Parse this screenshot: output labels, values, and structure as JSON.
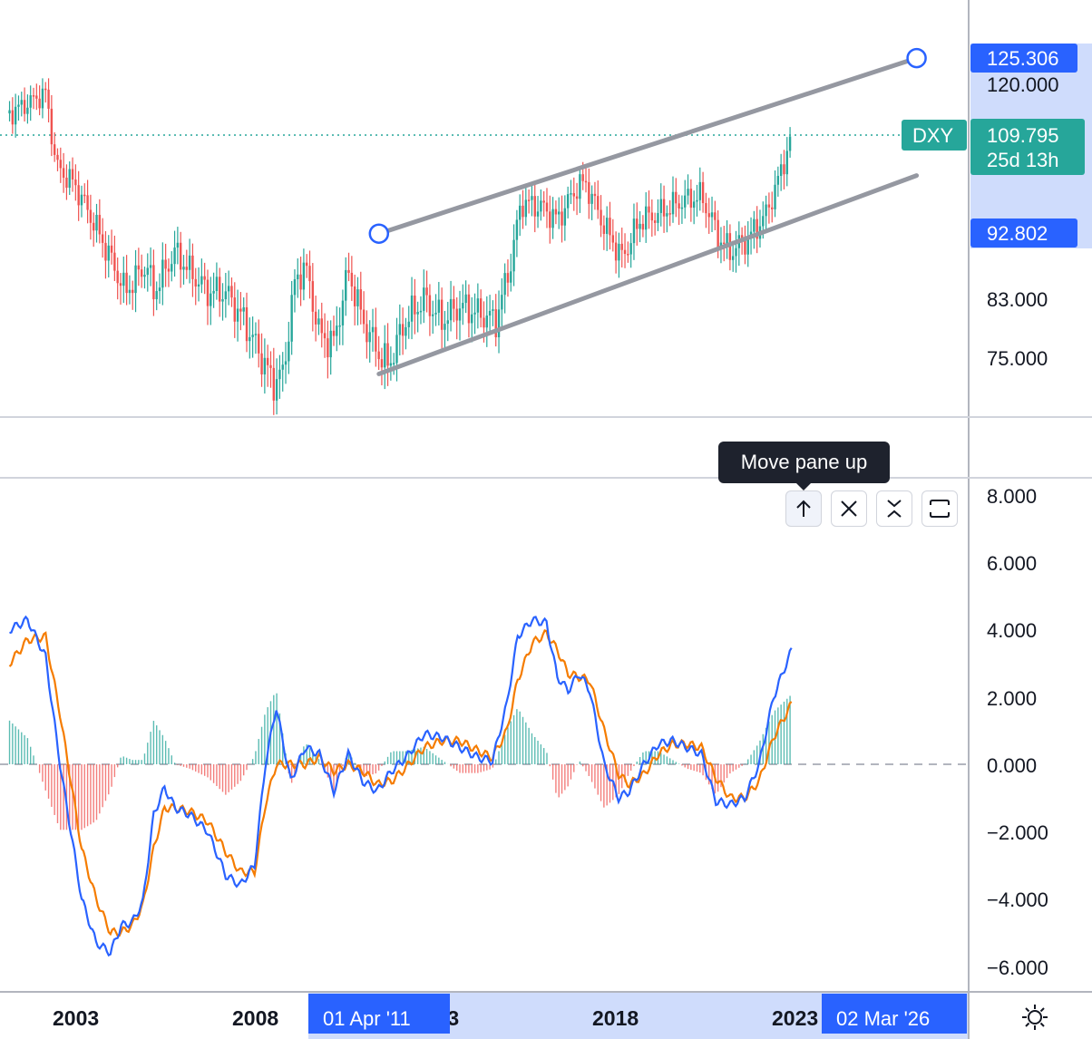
{
  "chart_data": [
    {
      "type": "candlestick",
      "symbol": "DXY",
      "x_ticks": [
        "2003",
        "2008",
        "2013",
        "2018",
        "2023"
      ],
      "y_ticks": [
        "120.000",
        "83.000",
        "75.000"
      ],
      "last_price": "109.795",
      "countdown": "25d 13h",
      "range_labels": [
        "125.306",
        "92.802"
      ],
      "channel": {
        "upper": [
          {
            "date": "2011-04-01",
            "value": 92.8
          },
          {
            "date": "2026-03-02",
            "value": 125.306
          }
        ],
        "lower": [
          {
            "date": "2011-04-01",
            "value": 73.0
          },
          {
            "date": "2026-03-02",
            "value": 102.5
          }
        ]
      },
      "series": [
        {
          "values": [
            [
              2001.0,
              114
            ],
            [
              2001.5,
              116
            ],
            [
              2002.0,
              118
            ],
            [
              2002.3,
              104
            ],
            [
              2002.8,
              101
            ],
            [
              2003.3,
              95
            ],
            [
              2003.8,
              89
            ],
            [
              2004.2,
              84
            ],
            [
              2004.8,
              88
            ],
            [
              2005.0,
              84
            ],
            [
              2005.6,
              90
            ],
            [
              2006.0,
              87
            ],
            [
              2006.5,
              84
            ],
            [
              2007.0,
              84
            ],
            [
              2007.5,
              80
            ],
            [
              2007.9,
              76
            ],
            [
              2008.3,
              72
            ],
            [
              2008.6,
              73
            ],
            [
              2008.9,
              85
            ],
            [
              2009.2,
              88
            ],
            [
              2009.6,
              78
            ],
            [
              2010.0,
              77
            ],
            [
              2010.4,
              87
            ],
            [
              2010.8,
              80
            ],
            [
              2011.2,
              76
            ],
            [
              2011.5,
              74
            ],
            [
              2012.0,
              80
            ],
            [
              2012.5,
              83
            ],
            [
              2013.0,
              80
            ],
            [
              2013.5,
              82
            ],
            [
              2014.0,
              81
            ],
            [
              2014.5,
              80
            ],
            [
              2014.9,
              88
            ],
            [
              2015.2,
              98
            ],
            [
              2015.8,
              97
            ],
            [
              2016.2,
              95
            ],
            [
              2016.8,
              101
            ],
            [
              2017.0,
              101
            ],
            [
              2017.5,
              94
            ],
            [
              2018.0,
              89
            ],
            [
              2018.5,
              95
            ],
            [
              2019.0,
              96
            ],
            [
              2019.6,
              98
            ],
            [
              2020.2,
              99
            ],
            [
              2020.7,
              92
            ],
            [
              2021.0,
              90
            ],
            [
              2021.5,
              92
            ],
            [
              2022.0,
              96
            ],
            [
              2022.4,
              103
            ],
            [
              2022.7,
              109.795
            ]
          ]
        }
      ]
    },
    {
      "type": "macd",
      "y_ticks": [
        "8.000",
        "6.000",
        "4.000",
        "2.000",
        "0.000",
        "−2.000",
        "−4.000",
        "−6.000"
      ],
      "ylim": [
        -6.5,
        8.2
      ],
      "series": [
        {
          "values": [
            [
              2001.0,
              4.0
            ],
            [
              2001.5,
              4.3
            ],
            [
              2002.0,
              3.2
            ],
            [
              2002.4,
              0.0
            ],
            [
              2002.7,
              -2.0
            ],
            [
              2003.0,
              -4.0
            ],
            [
              2003.4,
              -5.3
            ],
            [
              2003.8,
              -5.6
            ],
            [
              2004.1,
              -4.8
            ],
            [
              2004.4,
              -4.7
            ],
            [
              2004.7,
              -4.1
            ],
            [
              2005.0,
              -1.5
            ],
            [
              2005.3,
              -0.7
            ],
            [
              2005.6,
              -1.3
            ],
            [
              2006.0,
              -1.5
            ],
            [
              2006.5,
              -2.0
            ],
            [
              2007.0,
              -3.3
            ],
            [
              2007.4,
              -3.6
            ],
            [
              2007.8,
              -3.0
            ],
            [
              2008.1,
              0.0
            ],
            [
              2008.4,
              1.7
            ],
            [
              2008.8,
              -0.5
            ],
            [
              2009.2,
              0.5
            ],
            [
              2009.6,
              0.3
            ],
            [
              2010.0,
              -0.8
            ],
            [
              2010.4,
              0.3
            ],
            [
              2010.8,
              -0.5
            ],
            [
              2011.2,
              -0.8
            ],
            [
              2011.6,
              -0.2
            ],
            [
              2012.0,
              0.2
            ],
            [
              2012.5,
              0.9
            ],
            [
              2013.0,
              0.8
            ],
            [
              2013.5,
              0.5
            ],
            [
              2014.0,
              0.2
            ],
            [
              2014.4,
              0.1
            ],
            [
              2014.8,
              1.8
            ],
            [
              2015.1,
              3.8
            ],
            [
              2015.5,
              4.3
            ],
            [
              2015.9,
              4.2
            ],
            [
              2016.2,
              2.6
            ],
            [
              2016.5,
              2.2
            ],
            [
              2016.8,
              2.7
            ],
            [
              2017.1,
              2.2
            ],
            [
              2017.5,
              0.0
            ],
            [
              2017.9,
              -1.0
            ],
            [
              2018.2,
              -0.8
            ],
            [
              2018.6,
              0.0
            ],
            [
              2019.0,
              0.6
            ],
            [
              2019.4,
              0.7
            ],
            [
              2019.8,
              0.5
            ],
            [
              2020.2,
              0.3
            ],
            [
              2020.6,
              -1.1
            ],
            [
              2021.0,
              -1.2
            ],
            [
              2021.4,
              -1.0
            ],
            [
              2021.8,
              0.0
            ],
            [
              2022.2,
              2.0
            ],
            [
              2022.7,
              3.4
            ]
          ]
        },
        {
          "values": [
            [
              2001.0,
              3.0
            ],
            [
              2001.5,
              3.7
            ],
            [
              2002.0,
              3.8
            ],
            [
              2002.4,
              1.5
            ],
            [
              2002.7,
              -0.5
            ],
            [
              2003.0,
              -2.5
            ],
            [
              2003.4,
              -4.0
            ],
            [
              2003.8,
              -5.0
            ],
            [
              2004.1,
              -5.0
            ],
            [
              2004.4,
              -4.8
            ],
            [
              2004.7,
              -4.2
            ],
            [
              2005.0,
              -2.5
            ],
            [
              2005.3,
              -1.3
            ],
            [
              2005.6,
              -1.3
            ],
            [
              2006.0,
              -1.4
            ],
            [
              2006.5,
              -1.7
            ],
            [
              2007.0,
              -2.6
            ],
            [
              2007.4,
              -3.2
            ],
            [
              2007.8,
              -3.2
            ],
            [
              2008.1,
              -1.2
            ],
            [
              2008.4,
              0.0
            ],
            [
              2008.8,
              0.0
            ],
            [
              2009.2,
              0.0
            ],
            [
              2009.6,
              0.2
            ],
            [
              2010.0,
              -0.2
            ],
            [
              2010.4,
              0.0
            ],
            [
              2010.8,
              -0.2
            ],
            [
              2011.2,
              -0.6
            ],
            [
              2011.6,
              -0.5
            ],
            [
              2012.0,
              -0.1
            ],
            [
              2012.5,
              0.5
            ],
            [
              2013.0,
              0.7
            ],
            [
              2013.5,
              0.7
            ],
            [
              2014.0,
              0.4
            ],
            [
              2014.4,
              0.2
            ],
            [
              2014.8,
              1.0
            ],
            [
              2015.1,
              2.5
            ],
            [
              2015.5,
              3.6
            ],
            [
              2015.9,
              3.9
            ],
            [
              2016.2,
              3.4
            ],
            [
              2016.5,
              2.7
            ],
            [
              2016.8,
              2.6
            ],
            [
              2017.1,
              2.5
            ],
            [
              2017.5,
              1.0
            ],
            [
              2017.9,
              -0.3
            ],
            [
              2018.2,
              -0.6
            ],
            [
              2018.6,
              -0.3
            ],
            [
              2019.0,
              0.3
            ],
            [
              2019.4,
              0.6
            ],
            [
              2019.8,
              0.6
            ],
            [
              2020.2,
              0.5
            ],
            [
              2020.6,
              -0.4
            ],
            [
              2021.0,
              -1.0
            ],
            [
              2021.4,
              -1.0
            ],
            [
              2021.8,
              -0.5
            ],
            [
              2022.2,
              0.8
            ],
            [
              2022.7,
              1.8
            ]
          ]
        }
      ]
    }
  ],
  "tooltip_text": "Move pane up",
  "range_start_date": "01 Apr '11",
  "range_end_date": "02 Mar '26",
  "colors": {
    "up": "#26a69a",
    "down": "#ef5350",
    "macd": "#2962ff",
    "signal": "#f57c00",
    "channel": "#9598a1",
    "axis_label_bg": "#2962ff",
    "axis_range_bg": "#cfdcfc",
    "symbol_bg": "#26a69a"
  },
  "icons": {
    "move_up": "arrow-up-icon",
    "close": "close-icon",
    "collapse": "collapse-icon",
    "maximize": "maximize-icon",
    "settings": "gear-icon"
  }
}
